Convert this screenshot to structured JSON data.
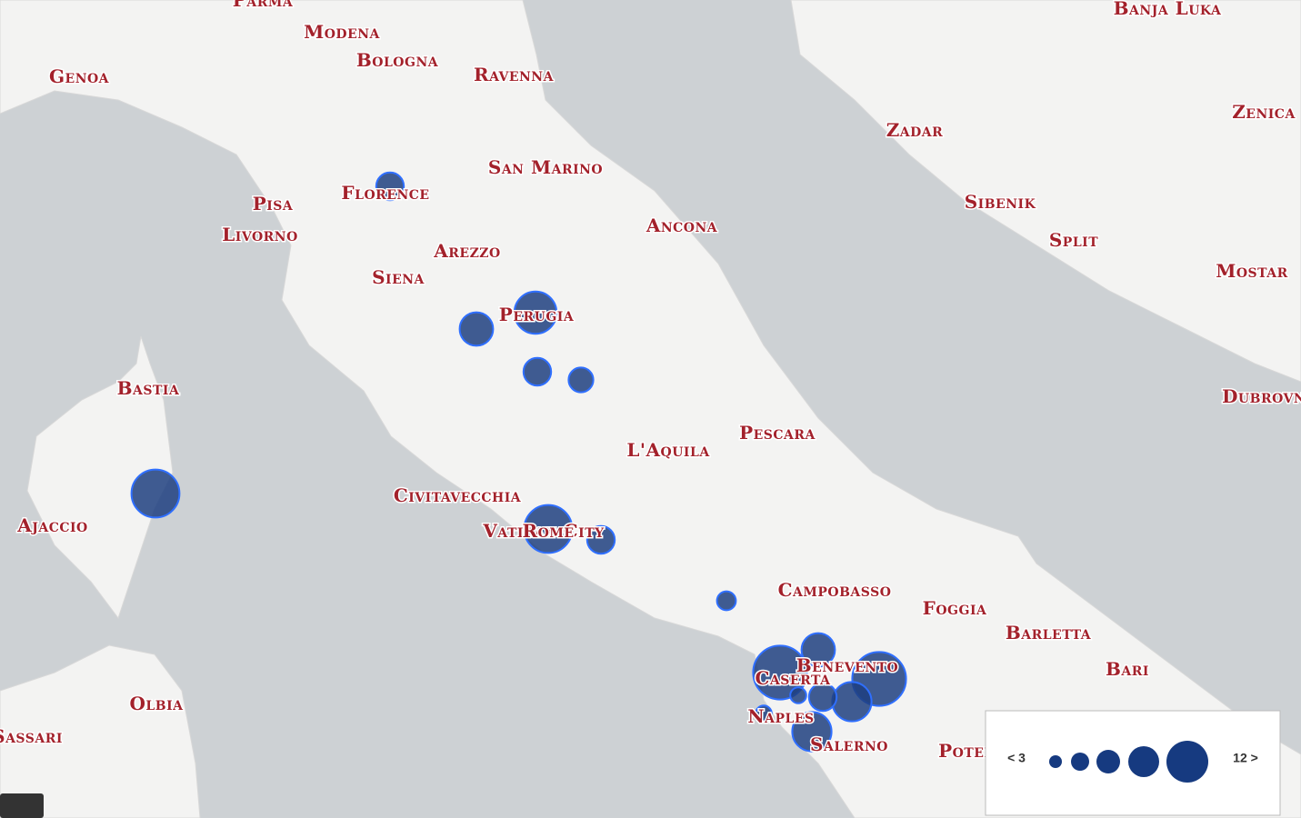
{
  "map": {
    "cities": [
      "Parma",
      "Modena",
      "Bologna",
      "Ravenna",
      "Genoa",
      "Banja Luka",
      "Zenica",
      "Zadar",
      "San Marino",
      "Florence",
      "Pisa",
      "Sibenik",
      "Split",
      "Livorno",
      "Ancona",
      "Arezzo",
      "Mostar",
      "Siena",
      "Perugia",
      "Bastia",
      "Dubrovnik",
      "Pescara",
      "L'Aquila",
      "Civitavecchia",
      "Ajaccio",
      "Vatican City",
      "Rome",
      "Campobasso",
      "Foggia",
      "Barletta",
      "Bari",
      "Benevento",
      "Caserta",
      "Naples",
      "Olbia",
      "Sassari",
      "Salerno",
      "Potenza"
    ],
    "bubbles": [
      {
        "size": 7
      },
      {
        "size": 12
      },
      {
        "size": 9
      },
      {
        "size": 7
      },
      {
        "size": 6
      },
      {
        "size": 14
      },
      {
        "size": 14
      },
      {
        "size": 7
      },
      {
        "size": 4
      },
      {
        "size": 16
      },
      {
        "size": 9
      },
      {
        "size": 16
      },
      {
        "size": 11
      },
      {
        "size": 7
      },
      {
        "size": 3
      },
      {
        "size": 11
      },
      {
        "size": 3
      }
    ],
    "legend": {
      "min_label": "< 3",
      "max_label": "12 >"
    }
  }
}
